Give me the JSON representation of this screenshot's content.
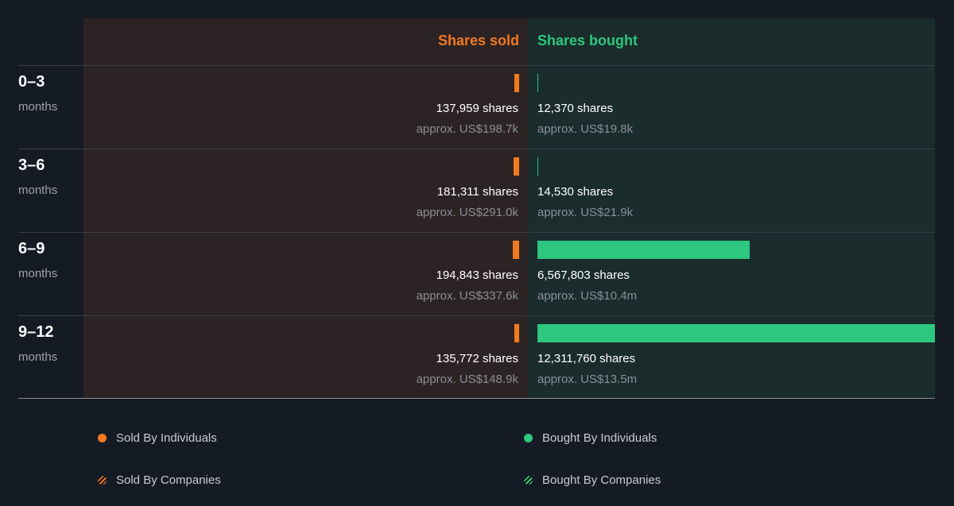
{
  "colors": {
    "sold": "#f37a20",
    "bought": "#2ec77f",
    "background": "#151b24",
    "sold_panel": "#2c2324",
    "bought_panel": "#1a2c2b"
  },
  "header": {
    "sold_label": "Shares sold",
    "bought_label": "Shares bought"
  },
  "chart_data": {
    "type": "bar",
    "categories": [
      "0–3",
      "3–6",
      "6–9",
      "9–12"
    ],
    "category_sublabel": "months",
    "series": [
      {
        "name": "Shares sold",
        "values": [
          137959,
          181311,
          194843,
          135772
        ],
        "labels": [
          "137,959 shares",
          "181,311 shares",
          "194,843 shares",
          "135,772 shares"
        ],
        "approx_labels": [
          "approx. US$198.7k",
          "approx. US$291.0k",
          "approx. US$337.6k",
          "approx. US$148.9k"
        ]
      },
      {
        "name": "Shares bought",
        "values": [
          12370,
          14530,
          6567803,
          12311760
        ],
        "labels": [
          "12,370 shares",
          "14,530 shares",
          "6,567,803 shares",
          "12,311,760 shares"
        ],
        "approx_labels": [
          "approx. US$19.8k",
          "approx. US$21.9k",
          "approx. US$10.4m",
          "approx. US$13.5m"
        ]
      }
    ],
    "max_value": 12311760,
    "legend": [
      {
        "label": "Sold By Individuals",
        "icon": "solid-dot",
        "color": "#f37a20"
      },
      {
        "label": "Bought By Individuals",
        "icon": "solid-dot",
        "color": "#2ec77f"
      },
      {
        "label": "Sold By Companies",
        "icon": "striped-dot",
        "color": "#f37a20"
      },
      {
        "label": "Bought By Companies",
        "icon": "striped-dot",
        "color": "#2ec77f"
      }
    ],
    "legend_position": "bottom"
  }
}
